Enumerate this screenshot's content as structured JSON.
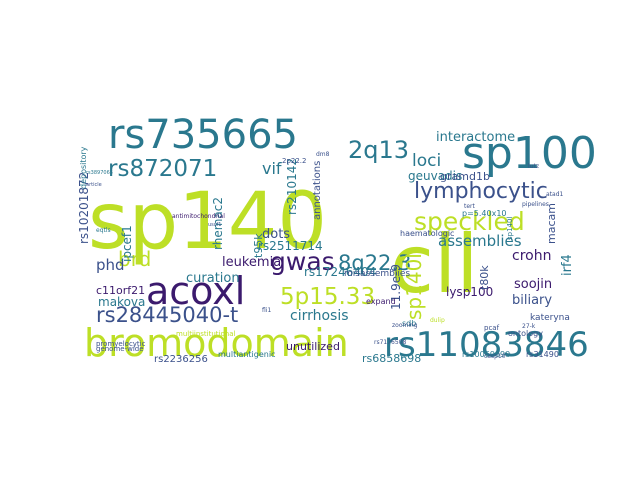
{
  "words": [
    {
      "text": "sp140",
      "color": "#bddf26"
    },
    {
      "text": "cll",
      "color": "#bddf26"
    },
    {
      "text": "rs735665",
      "color": "#2a788e"
    },
    {
      "text": "sp100",
      "color": "#2a788e"
    },
    {
      "text": "bromodomain",
      "color": "#bddf26"
    },
    {
      "text": "acoxl",
      "color": "#3b1a6d"
    },
    {
      "text": "rs11083846",
      "color": "#2a788e"
    },
    {
      "text": "speckled",
      "color": "#bddf26"
    },
    {
      "text": "2q13",
      "color": "#2a788e"
    },
    {
      "text": "rs872071",
      "color": "#2a788e"
    },
    {
      "text": "lymphocytic",
      "color": "#3b518b"
    },
    {
      "text": "gwas",
      "color": "#3b1a6d"
    },
    {
      "text": "5p15.33",
      "color": "#bddf26"
    },
    {
      "text": "rs28445040-t",
      "color": "#3b518b"
    },
    {
      "text": "8q22.3",
      "color": "#2a788e"
    },
    {
      "text": "brd",
      "color": "#bddf26"
    },
    {
      "text": "loci",
      "color": "#2a788e"
    },
    {
      "text": "assemblies",
      "color": "#2a788e"
    },
    {
      "text": "interactome",
      "color": "#2a788e"
    },
    {
      "text": "vif",
      "color": "#2a788e"
    },
    {
      "text": "leukemia",
      "color": "#3b1a6d"
    },
    {
      "text": "crohn",
      "color": "#3b1a6d"
    },
    {
      "text": "phd",
      "color": "#3b518b"
    },
    {
      "text": "cirrhosis",
      "color": "#2a788e"
    },
    {
      "text": "dots",
      "color": "#3b518b"
    },
    {
      "text": "curation",
      "color": "#2a788e"
    },
    {
      "text": "biliary",
      "color": "#3b518b"
    },
    {
      "text": "makova",
      "color": "#2a788e"
    },
    {
      "text": "geuvadis",
      "color": "#2a788e"
    },
    {
      "text": "gramd1b",
      "color": "#3b518b"
    },
    {
      "text": "rs2511714",
      "color": "#2a788e"
    },
    {
      "text": "rs17246404",
      "color": "#2a788e"
    },
    {
      "text": "c11orf21",
      "color": "#3b1a6d"
    },
    {
      "text": "soojin",
      "color": "#3b1a6d"
    },
    {
      "text": "lysp100",
      "color": "#3b1a6d"
    },
    {
      "text": "unutilized",
      "color": "#3b1a6d"
    },
    {
      "text": "rs6858698",
      "color": "#2a788e"
    },
    {
      "text": "rs2236256",
      "color": "#3b518b"
    },
    {
      "text": "multiantigenic",
      "color": "#2a788e"
    },
    {
      "text": "sp140l",
      "color": "#bddf26"
    },
    {
      "text": "ipcef1",
      "color": "#2a788e"
    },
    {
      "text": "rs210142",
      "color": "#2a788e"
    },
    {
      "text": "rs10201872",
      "color": "#3b518b"
    },
    {
      "text": "rhemac2",
      "color": "#2a788e"
    },
    {
      "text": "t95k",
      "color": "#2a788e"
    },
    {
      "text": "irf4",
      "color": "#2a788e"
    },
    {
      "text": "macam",
      "color": "#3b518b"
    },
    {
      "text": "t80k",
      "color": "#3b518b"
    },
    {
      "text": "11.9e-9",
      "color": "#3b518b"
    },
    {
      "text": "annotations",
      "color": "#3b518b"
    },
    {
      "text": "misassemblies",
      "color": "#3b518b"
    },
    {
      "text": "kateryna",
      "color": "#3b518b"
    },
    {
      "text": "haematologic",
      "color": "#3b518b"
    },
    {
      "text": "p=5.40x10",
      "color": "#2a788e"
    },
    {
      "text": "expand",
      "color": "#3b1a6d"
    },
    {
      "text": "sdb",
      "color": "#2a788e"
    },
    {
      "text": "genome-wide",
      "color": "#3b518b"
    },
    {
      "text": "rs10069690",
      "color": "#2a788e"
    },
    {
      "text": "rs31490",
      "color": "#3b518b"
    },
    {
      "text": "ontology",
      "color": "#3b518b"
    },
    {
      "text": "pcaf",
      "color": "#3b518b"
    },
    {
      "text": "2p22.2",
      "color": "#3b518b"
    },
    {
      "text": "antimitochondrial",
      "color": "#3b1a6d"
    },
    {
      "text": "depository",
      "color": "#2a788e"
    },
    {
      "text": "promyelocytic",
      "color": "#3b518b"
    },
    {
      "text": "multiinstitutional",
      "color": "#bddf26"
    },
    {
      "text": "rs7176508",
      "color": "#3b518b"
    },
    {
      "text": "zooming",
      "color": "#3b518b"
    },
    {
      "text": "dulip",
      "color": "#bddf26"
    },
    {
      "text": "casp10",
      "color": "#3b518b"
    },
    {
      "text": "lutz",
      "color": "#3b518b"
    },
    {
      "text": "pipelines",
      "color": "#3b518b"
    },
    {
      "text": "atad1",
      "color": "#3b518b"
    },
    {
      "text": "tert",
      "color": "#3b518b"
    },
    {
      "text": "sp140l",
      "color": "#2a788e"
    },
    {
      "text": "dm8",
      "color": "#3b518b"
    },
    {
      "text": "fli1",
      "color": "#3b518b"
    },
    {
      "text": "27-k",
      "color": "#3b518b"
    },
    {
      "text": "eqtls",
      "color": "#2a788e"
    },
    {
      "text": "rs3897065",
      "color": "#2a788e"
    },
    {
      "text": "article",
      "color": "#3b518b"
    },
    {
      "text": "uscf1",
      "color": "#3b518b"
    }
  ]
}
